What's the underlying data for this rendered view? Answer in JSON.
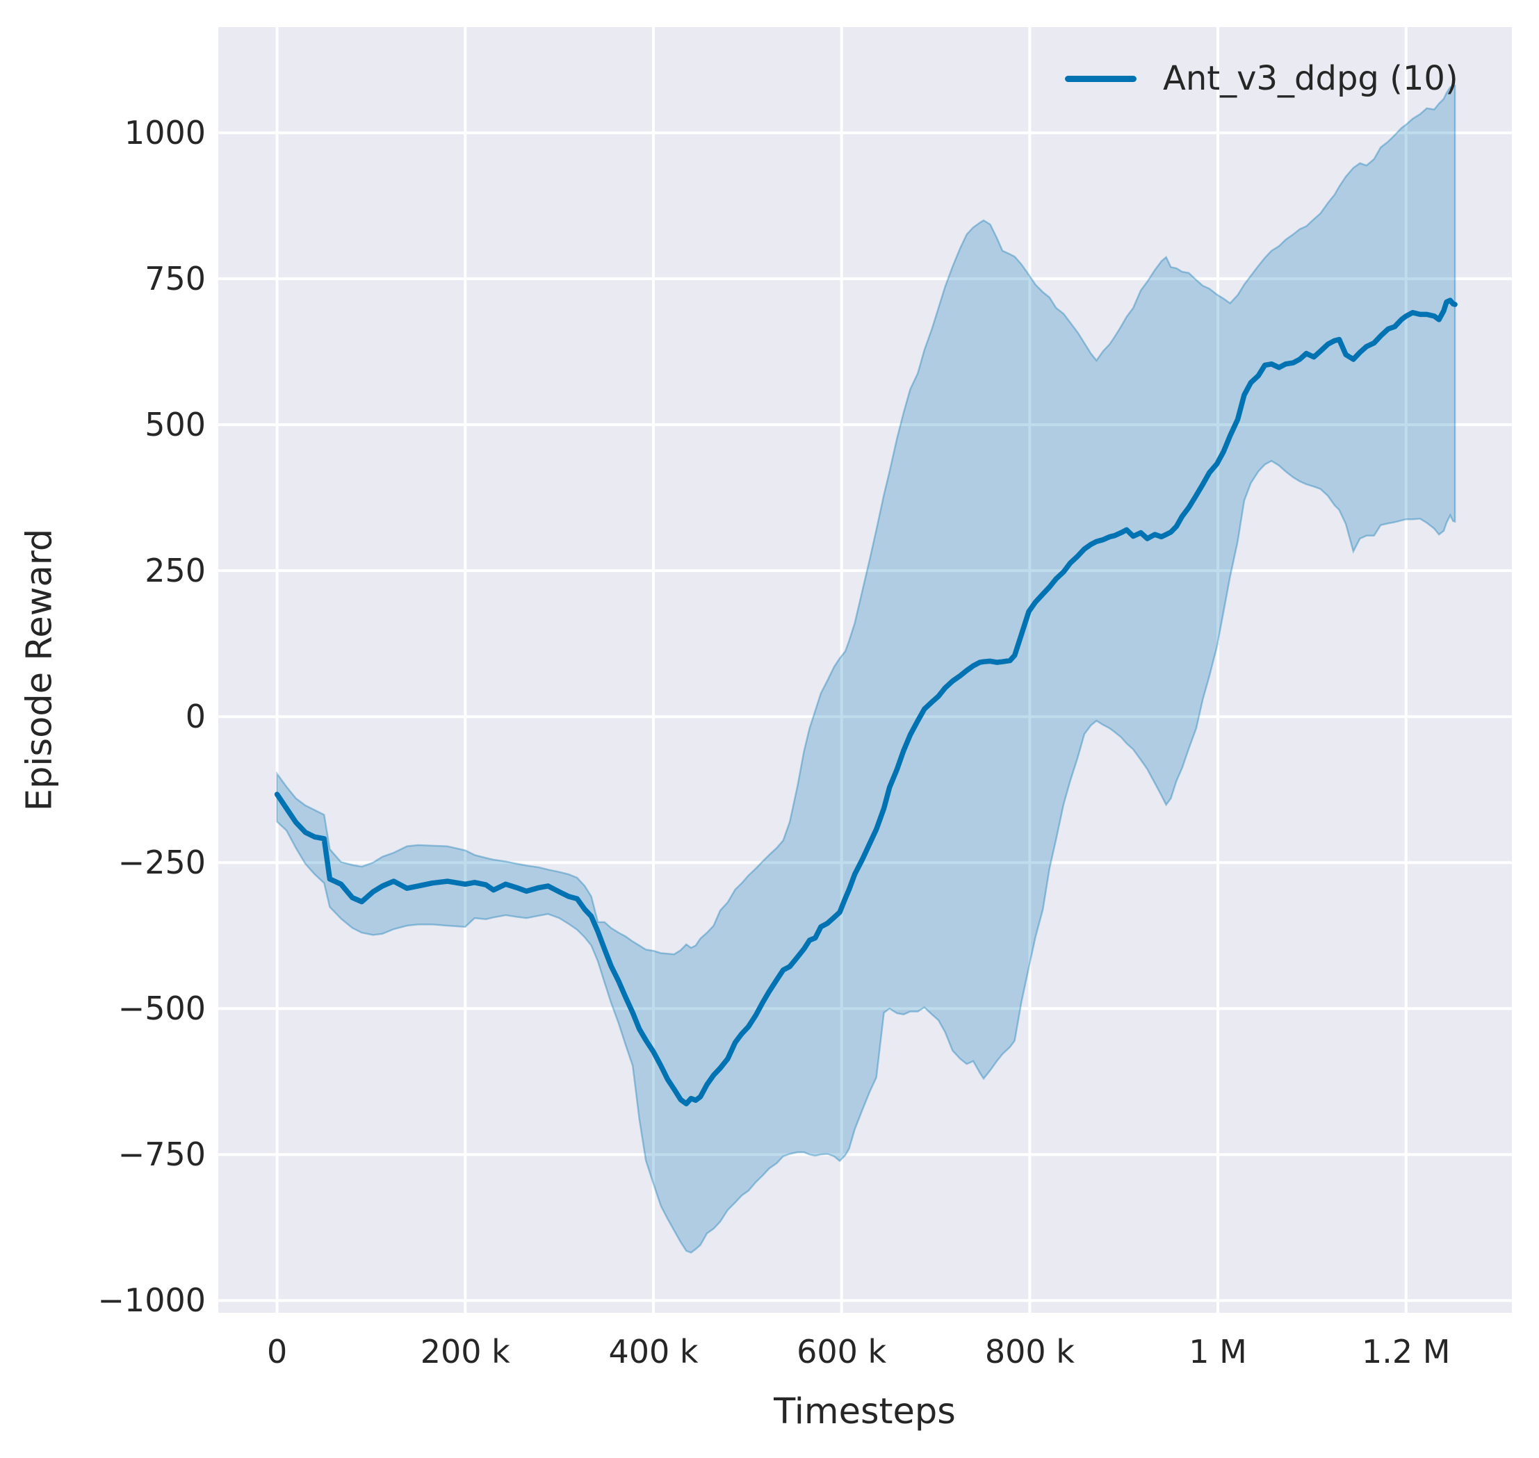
{
  "figure": {
    "background": "#ffffff",
    "plot_background": "#eaeaf2",
    "grid_color": "#ffffff",
    "text_color": "#262626",
    "accent_color": "#0173b2"
  },
  "legend": {
    "entries": [
      {
        "label": "Ant_v3_ddpg (10)",
        "color": "#0173b2",
        "swatch": "line-swatch"
      }
    ],
    "position": "upper right"
  },
  "chart_data": {
    "type": "line",
    "title": "",
    "xlabel": "Timesteps",
    "ylabel": "Episode Reward",
    "grid": true,
    "legend_position": "upper right",
    "x_unit": "thousands of timesteps",
    "xlim_k": [
      -62.5,
      1312.5
    ],
    "ylim": [
      -1021,
      1181
    ],
    "x_ticks": [
      {
        "v": 0,
        "label": "0"
      },
      {
        "v": 200,
        "label": "200 k"
      },
      {
        "v": 400,
        "label": "400 k"
      },
      {
        "v": 600,
        "label": "600 k"
      },
      {
        "v": 800,
        "label": "800 k"
      },
      {
        "v": 1000,
        "label": "1 M"
      },
      {
        "v": 1200,
        "label": "1.2 M"
      }
    ],
    "y_ticks": [
      {
        "v": 1000,
        "label": "1000"
      },
      {
        "v": 750,
        "label": "750"
      },
      {
        "v": 500,
        "label": "500"
      },
      {
        "v": 250,
        "label": "250"
      },
      {
        "v": 0,
        "label": "0"
      },
      {
        "v": -250,
        "label": "−250"
      },
      {
        "v": -500,
        "label": "−500"
      },
      {
        "v": -750,
        "label": "−750"
      },
      {
        "v": -1000,
        "label": "−1000"
      }
    ],
    "series": [
      {
        "name": "Ant_v3_ddpg (10)",
        "color": "#0173b2",
        "band_fill_alpha": 0.25,
        "band_edge_alpha": 0.35,
        "x_k": [
          0,
          10,
          20,
          30,
          40,
          50,
          56,
          68,
          80,
          90,
          102,
          112,
          124,
          138,
          150,
          165,
          181,
          200,
          210,
          222,
          230,
          243,
          255,
          265,
          278,
          288,
          300,
          310,
          319,
          327,
          334,
          341,
          348,
          355,
          363,
          370,
          378,
          385,
          392,
          400,
          408,
          415,
          422,
          429,
          435,
          440,
          445,
          450,
          457,
          464,
          471,
          479,
          487,
          494,
          501,
          509,
          516,
          523,
          531,
          538,
          545,
          553,
          560,
          566,
          572,
          578,
          585,
          592,
          598,
          604,
          608,
          614,
          622,
          630,
          637,
          645,
          651,
          659,
          666,
          673,
          681,
          688,
          696,
          703,
          710,
          718,
          726,
          733,
          740,
          747,
          751,
          758,
          765,
          771,
          779,
          784,
          791,
          799,
          806,
          814,
          821,
          828,
          836,
          843,
          851,
          858,
          865,
          871,
          878,
          885,
          890,
          897,
          903,
          910,
          918,
          925,
          933,
          940,
          945,
          950,
          956,
          962,
          969,
          977,
          984,
          991,
          999,
          1006,
          1013,
          1021,
          1028,
          1035,
          1043,
          1050,
          1057,
          1065,
          1072,
          1080,
          1087,
          1094,
          1102,
          1109,
          1117,
          1124,
          1129,
          1136,
          1144,
          1151,
          1158,
          1166,
          1173,
          1181,
          1188,
          1195,
          1200,
          1207,
          1215,
          1222,
          1230,
          1235,
          1240,
          1243,
          1247,
          1250,
          1252
        ],
        "mean": [
          -133,
          -157,
          -181,
          -198,
          -206,
          -209,
          -278,
          -287,
          -310,
          -317,
          -300,
          -290,
          -282,
          -294,
          -290,
          -285,
          -282,
          -287,
          -284,
          -288,
          -297,
          -287,
          -293,
          -299,
          -293,
          -290,
          -300,
          -308,
          -312,
          -330,
          -342,
          -368,
          -398,
          -427,
          -453,
          -479,
          -507,
          -535,
          -554,
          -574,
          -598,
          -621,
          -638,
          -656,
          -663,
          -654,
          -657,
          -651,
          -630,
          -614,
          -602,
          -586,
          -558,
          -543,
          -531,
          -511,
          -490,
          -471,
          -451,
          -434,
          -428,
          -412,
          -398,
          -383,
          -379,
          -360,
          -354,
          -344,
          -335,
          -311,
          -296,
          -270,
          -245,
          -217,
          -193,
          -157,
          -121,
          -90,
          -58,
          -31,
          -7,
          13,
          25,
          35,
          49,
          61,
          70,
          79,
          87,
          93,
          94,
          95,
          93,
          94,
          96,
          105,
          140,
          180,
          196,
          210,
          222,
          236,
          248,
          263,
          275,
          287,
          295,
          300,
          303,
          308,
          310,
          315,
          320,
          309,
          315,
          305,
          312,
          308,
          312,
          316,
          326,
          343,
          358,
          379,
          398,
          418,
          433,
          454,
          481,
          509,
          551,
          572,
          584,
          602,
          604,
          598,
          604,
          606,
          612,
          622,
          616,
          626,
          638,
          644,
          646,
          620,
          612,
          624,
          634,
          640,
          652,
          664,
          668,
          680,
          686,
          692,
          689,
          689,
          686,
          680,
          695,
          710,
          713,
          707,
          706
        ],
        "lower": [
          -180,
          -195,
          -225,
          -252,
          -270,
          -285,
          -326,
          -346,
          -362,
          -370,
          -374,
          -372,
          -364,
          -358,
          -356,
          -356,
          -358,
          -360,
          -345,
          -347,
          -344,
          -340,
          -343,
          -345,
          -341,
          -338,
          -345,
          -355,
          -365,
          -378,
          -392,
          -419,
          -455,
          -490,
          -525,
          -560,
          -598,
          -689,
          -760,
          -800,
          -838,
          -860,
          -880,
          -900,
          -915,
          -918,
          -912,
          -905,
          -885,
          -877,
          -865,
          -845,
          -832,
          -820,
          -812,
          -797,
          -786,
          -774,
          -765,
          -753,
          -749,
          -746,
          -746,
          -750,
          -752,
          -750,
          -749,
          -753,
          -761,
          -751,
          -740,
          -707,
          -674,
          -642,
          -618,
          -507,
          -500,
          -508,
          -510,
          -505,
          -505,
          -498,
          -510,
          -520,
          -540,
          -572,
          -586,
          -595,
          -590,
          -610,
          -620,
          -606,
          -590,
          -578,
          -566,
          -555,
          -490,
          -430,
          -378,
          -330,
          -260,
          -210,
          -150,
          -110,
          -70,
          -30,
          -15,
          -7,
          -14,
          -20,
          -26,
          -35,
          -46,
          -56,
          -74,
          -90,
          -114,
          -135,
          -151,
          -140,
          -110,
          -88,
          -55,
          -20,
          30,
          70,
          120,
          180,
          240,
          300,
          370,
          400,
          420,
          432,
          438,
          430,
          420,
          410,
          403,
          398,
          394,
          390,
          378,
          362,
          354,
          330,
          283,
          305,
          310,
          310,
          328,
          331,
          333,
          336,
          338,
          338,
          339,
          332,
          322,
          312,
          318,
          332,
          345,
          335,
          334
        ],
        "upper": [
          -98,
          -120,
          -140,
          -152,
          -160,
          -168,
          -227,
          -249,
          -254,
          -257,
          -250,
          -240,
          -233,
          -222,
          -220,
          -221,
          -222,
          -229,
          -237,
          -242,
          -245,
          -248,
          -252,
          -255,
          -258,
          -262,
          -266,
          -270,
          -276,
          -290,
          -308,
          -352,
          -352,
          -362,
          -370,
          -376,
          -385,
          -392,
          -399,
          -401,
          -405,
          -406,
          -407,
          -400,
          -390,
          -396,
          -392,
          -380,
          -370,
          -358,
          -332,
          -318,
          -296,
          -285,
          -272,
          -260,
          -248,
          -237,
          -225,
          -212,
          -180,
          -120,
          -60,
          -20,
          10,
          40,
          62,
          85,
          100,
          112,
          130,
          160,
          215,
          270,
          320,
          380,
          420,
          477,
          521,
          561,
          588,
          628,
          664,
          700,
          736,
          771,
          802,
          826,
          838,
          846,
          850,
          843,
          820,
          798,
          792,
          788,
          775,
          757,
          740,
          727,
          718,
          700,
          690,
          675,
          658,
          640,
          622,
          610,
          626,
          638,
          650,
          668,
          685,
          700,
          730,
          745,
          765,
          780,
          787,
          770,
          768,
          762,
          760,
          748,
          738,
          733,
          723,
          716,
          708,
          722,
          740,
          755,
          772,
          786,
          798,
          806,
          817,
          826,
          835,
          840,
          852,
          862,
          880,
          894,
          908,
          925,
          940,
          948,
          944,
          955,
          975,
          985,
          996,
          1008,
          1014,
          1024,
          1032,
          1042,
          1040,
          1050,
          1058,
          1068,
          1078,
          1081,
          1081
        ]
      }
    ]
  }
}
